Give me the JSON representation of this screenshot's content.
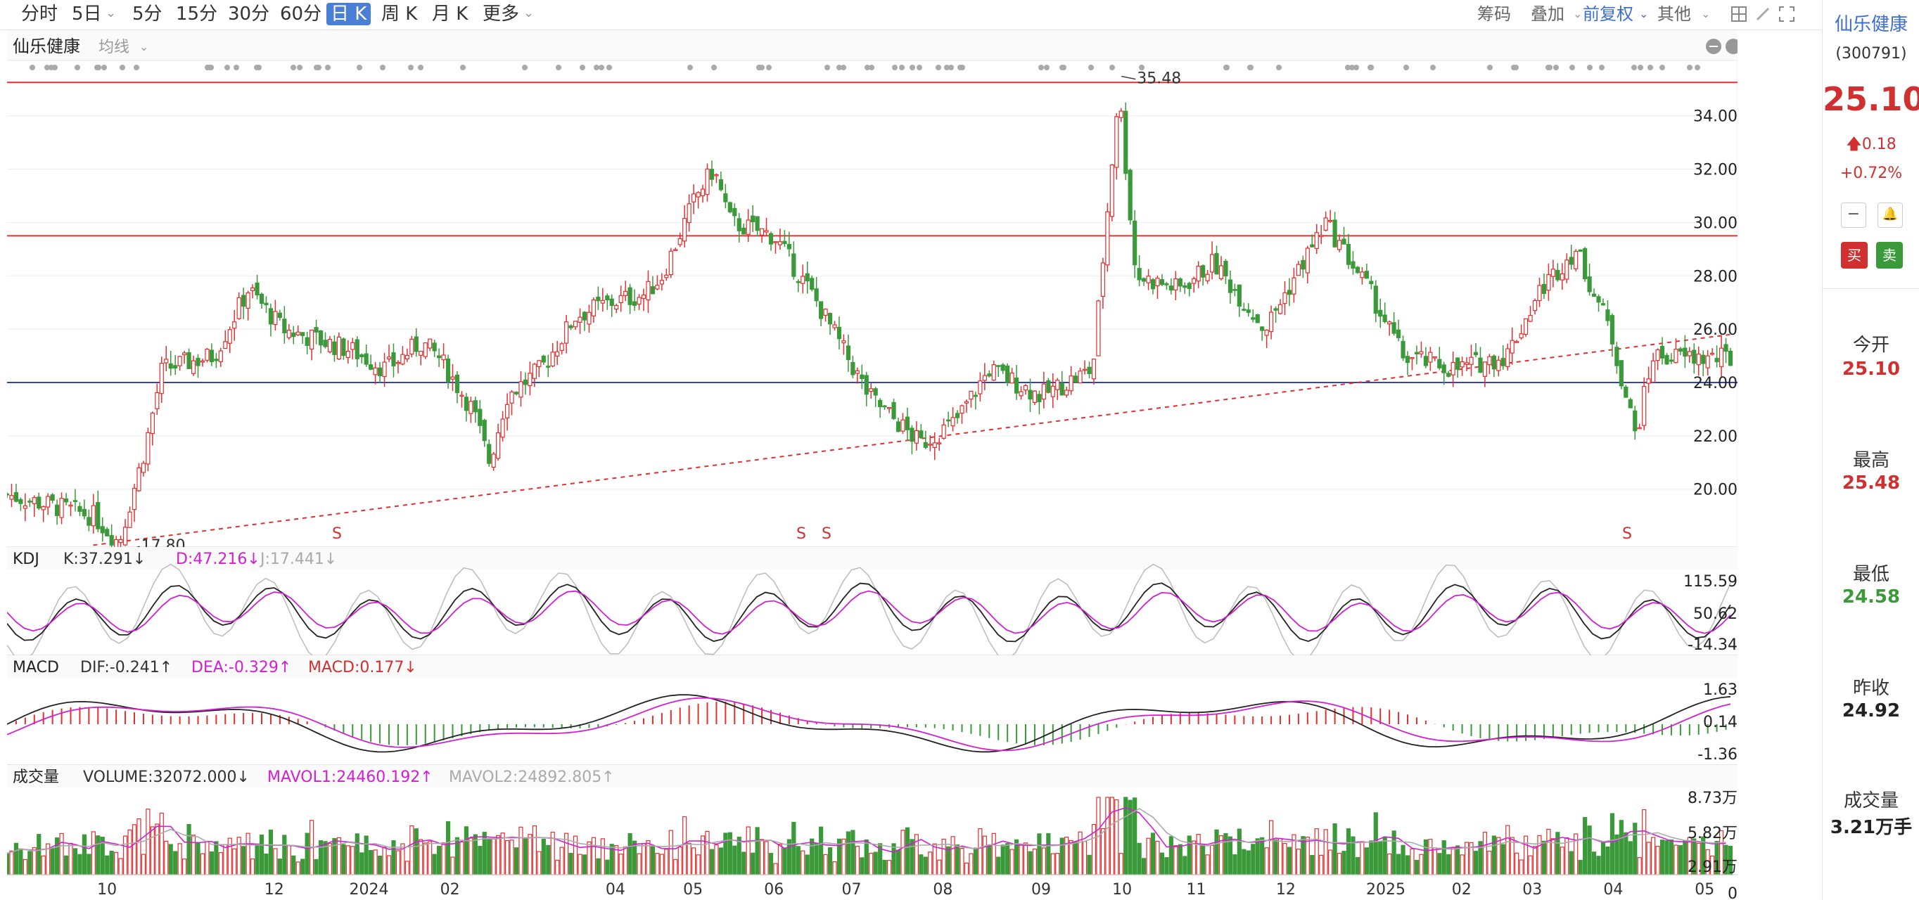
{
  "toolbar": {
    "periods": [
      "分时",
      "5日",
      "5分",
      "15分",
      "30分",
      "60分",
      "日 K",
      "周 K",
      "月 K",
      "更多"
    ],
    "active": "日 K",
    "right": [
      "筹码",
      "叠加",
      "前复权",
      "其他"
    ]
  },
  "stock": {
    "name": "仙乐健康",
    "code": "(300791)",
    "ma_label": "均线"
  },
  "price": {
    "last": "25.10",
    "change": "0.18",
    "change_pct": "+0.72%"
  },
  "side": {
    "buy": "买",
    "sell": "卖",
    "open_label": "今开",
    "open": "25.10",
    "high_label": "最高",
    "high": "25.48",
    "low_label": "最低",
    "low": "24.58",
    "prev_label": "昨收",
    "prev": "24.92",
    "vol_label": "成交量",
    "vol": "3.21万手"
  },
  "indicators": {
    "kdj": {
      "name": "KDJ",
      "k": "K:37.291↓",
      "d": "D:47.216↓",
      "j": "J:17.441↓"
    },
    "macd": {
      "name": "MACD",
      "dif": "DIF:-0.241↑",
      "dea": "DEA:-0.329↑",
      "macd": "MACD:0.177↓"
    },
    "volume": {
      "name": "成交量",
      "vol": "VOLUME:32072.000↓",
      "mavol1": "MAVOL1:24460.192↑",
      "mavol2": "MAVOL2:24892.805↑"
    }
  },
  "chart_data": {
    "type": "candlestick",
    "y_ticks": [
      "34.00",
      "32.00",
      "30.00",
      "28.00",
      "26.00",
      "24.00",
      "22.00",
      "20.00"
    ],
    "ylim": [
      18.2,
      35.6
    ],
    "annotations": {
      "max": "35.48",
      "min": "17.80"
    },
    "signals": [
      "S",
      "S",
      "S",
      "S"
    ],
    "horizontal_lines": [
      {
        "value": 35.25,
        "color": "#e03030"
      },
      {
        "value": 29.5,
        "color": "#e03030"
      },
      {
        "value": 24.0,
        "color": "#3040c8"
      }
    ],
    "trendline": {
      "from": [
        0.05,
        17.9
      ],
      "to": [
        1.0,
        25.8
      ],
      "color": "#e03030"
    },
    "x_ticks": [
      "10",
      "12",
      "2024",
      "02",
      "04",
      "05",
      "06",
      "07",
      "08",
      "09",
      "10",
      "11",
      "12",
      "2025",
      "02",
      "03",
      "04",
      "05"
    ],
    "close_path": [
      [
        0.0,
        19.8
      ],
      [
        0.05,
        19.0
      ],
      [
        0.065,
        18.0
      ],
      [
        0.08,
        21.5
      ],
      [
        0.09,
        24.5
      ],
      [
        0.12,
        25.0
      ],
      [
        0.14,
        27.5
      ],
      [
        0.16,
        26.0
      ],
      [
        0.2,
        25.2
      ],
      [
        0.22,
        24.5
      ],
      [
        0.24,
        25.5
      ],
      [
        0.25,
        25.0
      ],
      [
        0.28,
        21.0
      ],
      [
        0.27,
        23.0
      ],
      [
        0.29,
        23.5
      ],
      [
        0.31,
        24.5
      ],
      [
        0.33,
        26.5
      ],
      [
        0.35,
        27.0
      ],
      [
        0.37,
        27.3
      ],
      [
        0.38,
        28.0
      ],
      [
        0.4,
        31.0
      ],
      [
        0.41,
        32.0
      ],
      [
        0.42,
        30.0
      ],
      [
        0.445,
        29.5
      ],
      [
        0.47,
        27.0
      ],
      [
        0.5,
        23.5
      ],
      [
        0.53,
        21.7
      ],
      [
        0.55,
        22.5
      ],
      [
        0.57,
        24.5
      ],
      [
        0.6,
        23.5
      ],
      [
        0.63,
        24.5
      ],
      [
        0.645,
        35.0
      ],
      [
        0.655,
        28.0
      ],
      [
        0.68,
        27.5
      ],
      [
        0.7,
        28.5
      ],
      [
        0.73,
        26.0
      ],
      [
        0.765,
        30.0
      ],
      [
        0.79,
        27.5
      ],
      [
        0.81,
        25.0
      ],
      [
        0.84,
        24.5
      ],
      [
        0.87,
        25.0
      ],
      [
        0.89,
        27.5
      ],
      [
        0.91,
        29.0
      ],
      [
        0.93,
        26.0
      ],
      [
        0.945,
        22.0
      ],
      [
        0.955,
        25.0
      ],
      [
        0.99,
        24.9
      ]
    ],
    "volume_ticks": [
      "8.73万",
      "5.82万",
      "2.91万",
      "0"
    ],
    "kdj_ticks": [
      "115.59",
      "50.62",
      "-14.34"
    ],
    "macd_ticks": [
      "1.63",
      "0.14",
      "-1.36"
    ]
  }
}
